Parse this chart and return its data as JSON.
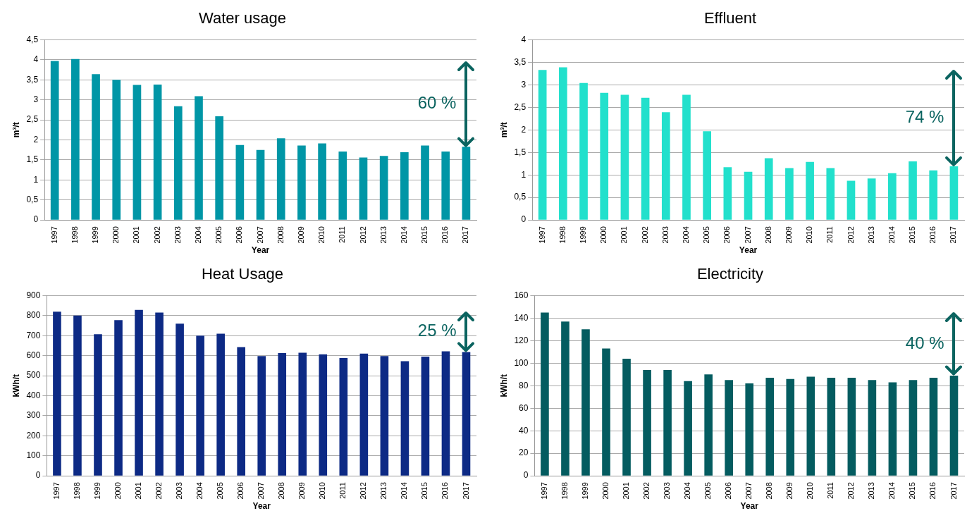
{
  "chart_data": [
    {
      "type": "bar",
      "title": "Water usage",
      "xlabel": "Year",
      "ylabel": "m³/t",
      "categories": [
        "1997",
        "1998",
        "1999",
        "2000",
        "2001",
        "2002",
        "2003",
        "2004",
        "2005",
        "2006",
        "2007",
        "2008",
        "2009",
        "2010",
        "2011",
        "2012",
        "2013",
        "2014",
        "2015",
        "2016",
        "2017"
      ],
      "values": [
        3.97,
        4.02,
        3.64,
        3.5,
        3.37,
        3.38,
        2.84,
        3.09,
        2.59,
        1.87,
        1.75,
        2.04,
        1.86,
        1.91,
        1.71,
        1.56,
        1.6,
        1.69,
        1.86,
        1.71,
        1.83
      ],
      "color": "#0096a6",
      "ylim": [
        0,
        4.5
      ],
      "yticks": [
        0,
        {
          "value": 0.5,
          "label": "0,5"
        },
        1,
        {
          "value": 1.5,
          "label": "1,5"
        },
        2,
        {
          "value": 2.5,
          "label": "2,5"
        },
        3,
        {
          "value": 3.5,
          "label": "3,5"
        },
        4,
        {
          "value": 4.5,
          "label": "4,5"
        }
      ],
      "grid": "y",
      "annotations": [
        "60 %"
      ]
    },
    {
      "type": "bar",
      "title": "Effluent",
      "xlabel": "Year",
      "ylabel": "m³/t",
      "categories": [
        "1997",
        "1998",
        "1999",
        "2000",
        "2001",
        "2002",
        "2003",
        "2004",
        "2005",
        "2006",
        "2007",
        "2008",
        "2009",
        "2010",
        "2011",
        "2012",
        "2013",
        "2014",
        "2015",
        "2016",
        "2017"
      ],
      "values": [
        3.33,
        3.39,
        3.04,
        2.82,
        2.78,
        2.71,
        2.39,
        2.78,
        1.97,
        1.17,
        1.07,
        1.37,
        1.15,
        1.29,
        1.15,
        0.87,
        0.92,
        1.04,
        1.3,
        1.1,
        1.19
      ],
      "color": "#22e0cc",
      "ylim": [
        0,
        4
      ],
      "yticks": [
        0,
        {
          "value": 0.5,
          "label": "0,5"
        },
        1,
        {
          "value": 1.5,
          "label": "1,5"
        },
        2,
        {
          "value": 2.5,
          "label": "2,5"
        },
        3,
        {
          "value": 3.5,
          "label": "3,5"
        },
        4
      ],
      "grid": "y",
      "annotations": [
        "74 %"
      ]
    },
    {
      "type": "bar",
      "title": "Heat Usage",
      "xlabel": "Year",
      "ylabel": "kWh/t",
      "categories": [
        "1997",
        "1998",
        "1999",
        "2000",
        "2001",
        "2002",
        "2003",
        "2004",
        "2005",
        "2006",
        "2007",
        "2008",
        "2009",
        "2010",
        "2011",
        "2012",
        "2013",
        "2014",
        "2015",
        "2016",
        "2017"
      ],
      "values": [
        820,
        800,
        707,
        777,
        828,
        815,
        760,
        700,
        710,
        643,
        598,
        613,
        615,
        607,
        588,
        610,
        598,
        572,
        595,
        622,
        618
      ],
      "color": "#0d2a85",
      "ylim": [
        0,
        900
      ],
      "yticks": [
        0,
        100,
        200,
        300,
        400,
        500,
        600,
        700,
        800,
        900
      ],
      "grid": "y",
      "annotations": [
        "25 %"
      ]
    },
    {
      "type": "bar",
      "title": "Electricity",
      "xlabel": "Year",
      "ylabel": "kWh/t",
      "categories": [
        "1997",
        "1998",
        "1999",
        "2000",
        "2001",
        "2002",
        "2003",
        "2004",
        "2005",
        "2006",
        "2007",
        "2008",
        "2009",
        "2010",
        "2011",
        "2012",
        "2013",
        "2014",
        "2015",
        "2016",
        "2017"
      ],
      "values": [
        145,
        137,
        130,
        113,
        104,
        94,
        94,
        84,
        90,
        85,
        82,
        87,
        86,
        88,
        87,
        87,
        85,
        83,
        85,
        87,
        89
      ],
      "color": "#045c60",
      "ylim": [
        0,
        160
      ],
      "yticks": [
        0,
        20,
        40,
        60,
        80,
        100,
        120,
        140,
        160
      ],
      "grid": "y",
      "annotations": [
        "40 %"
      ]
    }
  ]
}
